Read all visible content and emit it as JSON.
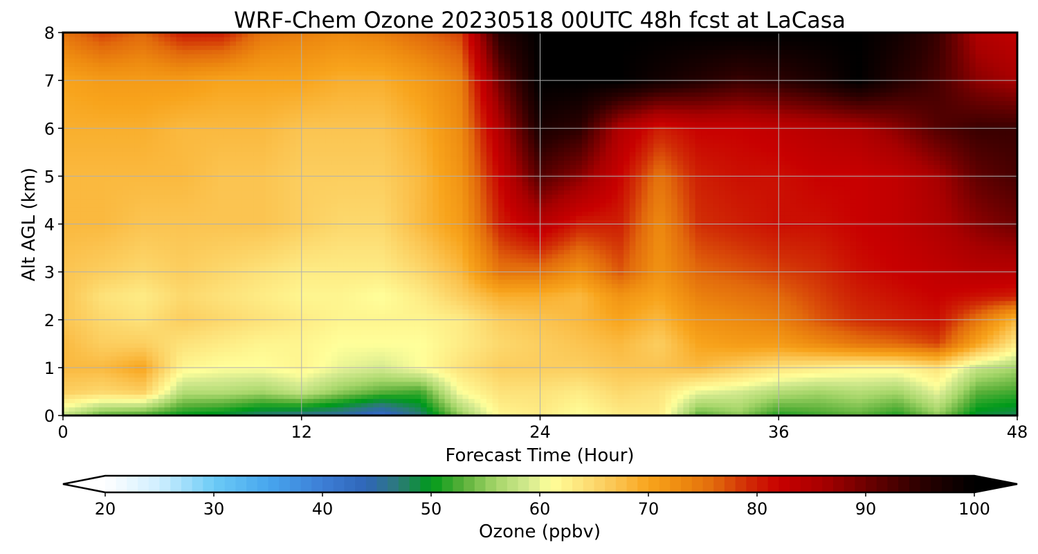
{
  "chart_data": {
    "type": "heatmap",
    "title": "WRF-Chem Ozone  20230518 00UTC 48h fcst at LaCasa",
    "xlabel": "Forecast Time (Hour)",
    "ylabel": "Alt AGL (km)",
    "xlim": [
      0,
      48
    ],
    "ylim": [
      0,
      8
    ],
    "xticks": [
      0,
      12,
      24,
      36,
      48
    ],
    "yticks": [
      0,
      1,
      2,
      3,
      4,
      5,
      6,
      7,
      8
    ],
    "grid": true,
    "x": [
      0,
      2,
      4,
      6,
      8,
      10,
      12,
      14,
      16,
      18,
      20,
      22,
      24,
      26,
      28,
      30,
      32,
      34,
      36,
      38,
      40,
      42,
      44,
      46,
      48
    ],
    "y": [
      0,
      0.5,
      1,
      1.5,
      2,
      2.5,
      3,
      4,
      5,
      6,
      7,
      8
    ],
    "z": [
      [
        58,
        53,
        52,
        50,
        49,
        47,
        46,
        45,
        42,
        47,
        55,
        62,
        63,
        61,
        63,
        63,
        53,
        55,
        51,
        52,
        53,
        51,
        55,
        49,
        48
      ],
      [
        66,
        65,
        66,
        57,
        57,
        56,
        58,
        55,
        53,
        52,
        61,
        64,
        64,
        63,
        65,
        64,
        60,
        59,
        57,
        56,
        57,
        56,
        60,
        53,
        52
      ],
      [
        68,
        68,
        70,
        62,
        61,
        61,
        62,
        60,
        59,
        61,
        64,
        66,
        66,
        66,
        67,
        67,
        68,
        66,
        64,
        63,
        62,
        62,
        64,
        58,
        56
      ],
      [
        68,
        66,
        66,
        64,
        63,
        62,
        62,
        61,
        61,
        61,
        63,
        65,
        66,
        67,
        68,
        66,
        70,
        71,
        71,
        73,
        75,
        76,
        78,
        70,
        63
      ],
      [
        67,
        65,
        64,
        66,
        65,
        64,
        63,
        62,
        62,
        62,
        63,
        66,
        67,
        68,
        70,
        68,
        72,
        73,
        74,
        77,
        79,
        80,
        81,
        75,
        68
      ],
      [
        67,
        64,
        63,
        65,
        64,
        63,
        62,
        62,
        61,
        63,
        66,
        69,
        69,
        68,
        72,
        70,
        74,
        75,
        76,
        78,
        80,
        81,
        82,
        81,
        80
      ],
      [
        67,
        66,
        65,
        66,
        65,
        64,
        63,
        63,
        63,
        65,
        68,
        75,
        75,
        72,
        77,
        72,
        76,
        77,
        78,
        79,
        81,
        82,
        83,
        84,
        84
      ],
      [
        68,
        68,
        67,
        67,
        67,
        67,
        66,
        65,
        65,
        68,
        71,
        80,
        84,
        80,
        80,
        73,
        79,
        80,
        81,
        81,
        82,
        83,
        85,
        88,
        90
      ],
      [
        68,
        68,
        68,
        68,
        67,
        67,
        66,
        66,
        66,
        68,
        72,
        82,
        92,
        88,
        82,
        75,
        80,
        81,
        81,
        82,
        82,
        83,
        86,
        91,
        93
      ],
      [
        69,
        69,
        69,
        68,
        68,
        68,
        67,
        67,
        67,
        69,
        73,
        85,
        97,
        95,
        85,
        80,
        82,
        82,
        83,
        84,
        85,
        88,
        92,
        94,
        94
      ],
      [
        70,
        71,
        71,
        71,
        70,
        70,
        70,
        69,
        69,
        71,
        74,
        90,
        100,
        100,
        100,
        98,
        96,
        94,
        95,
        97,
        100,
        96,
        93,
        88,
        86
      ],
      [
        75,
        78,
        76,
        80,
        80,
        75,
        74,
        73,
        74,
        76,
        78,
        96,
        100,
        100,
        100,
        100,
        100,
        100,
        100,
        100,
        100,
        98,
        94,
        85,
        83
      ]
    ],
    "colorbar": {
      "label": "Ozone  (ppbv)",
      "min": 20,
      "max": 100,
      "ticks": [
        20,
        30,
        40,
        50,
        60,
        70,
        80,
        90,
        100
      ],
      "extend": "both",
      "stops": [
        {
          "v": 20,
          "c": "#ffffff"
        },
        {
          "v": 25,
          "c": "#cfeeff"
        },
        {
          "v": 30,
          "c": "#6ccbf6"
        },
        {
          "v": 35,
          "c": "#47a6ee"
        },
        {
          "v": 40,
          "c": "#3d7ed6"
        },
        {
          "v": 44,
          "c": "#2f66b8"
        },
        {
          "v": 47,
          "c": "#2c7a79"
        },
        {
          "v": 50,
          "c": "#009a1a"
        },
        {
          "v": 53,
          "c": "#5cb13a"
        },
        {
          "v": 56,
          "c": "#a6d66a"
        },
        {
          "v": 59,
          "c": "#d4ea8f"
        },
        {
          "v": 61,
          "c": "#ffff9a"
        },
        {
          "v": 64,
          "c": "#fde27a"
        },
        {
          "v": 67,
          "c": "#fbc451"
        },
        {
          "v": 70,
          "c": "#f8a41c"
        },
        {
          "v": 73,
          "c": "#ee8b10"
        },
        {
          "v": 76,
          "c": "#e26a0c"
        },
        {
          "v": 79,
          "c": "#d12e06"
        },
        {
          "v": 82,
          "c": "#c80000"
        },
        {
          "v": 86,
          "c": "#a80000"
        },
        {
          "v": 90,
          "c": "#6e0000"
        },
        {
          "v": 95,
          "c": "#2c0000"
        },
        {
          "v": 100,
          "c": "#000000"
        }
      ]
    }
  }
}
